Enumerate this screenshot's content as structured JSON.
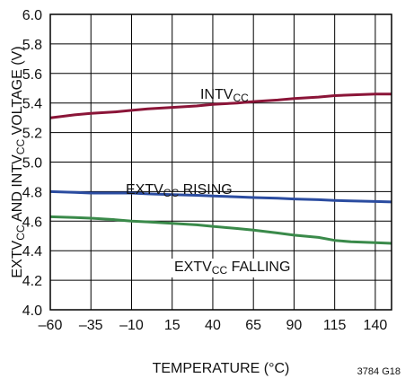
{
  "chart_data": {
    "type": "line",
    "xlabel": "TEMPERATURE (°C)",
    "ylabel": "EXTV_CC AND INTV_CC VOLTAGE (V)",
    "xlim": [
      -60,
      150
    ],
    "ylim": [
      4.0,
      6.0
    ],
    "xticks": [
      -60,
      -35,
      -10,
      15,
      40,
      65,
      90,
      115,
      140
    ],
    "xtick_labels": [
      "–60",
      "–35",
      "–10",
      "15",
      "40",
      "65",
      "90",
      "115",
      "140"
    ],
    "yticks": [
      4.0,
      4.2,
      4.4,
      4.6,
      4.8,
      5.0,
      5.2,
      5.4,
      5.6,
      5.8,
      6.0
    ],
    "ytick_labels": [
      "4.0",
      "4.2",
      "4.4",
      "4.6",
      "4.8",
      "5.0",
      "5.2",
      "5.4",
      "5.6",
      "5.8",
      "6.0"
    ],
    "grid": true,
    "figure_id": "3784 G18",
    "series": [
      {
        "name": "INTV_CC",
        "color": "#8b1538",
        "x": [
          -60,
          -45,
          -35,
          -20,
          -10,
          0,
          15,
          30,
          40,
          55,
          65,
          80,
          90,
          105,
          115,
          125,
          140,
          150
        ],
        "y": [
          5.3,
          5.32,
          5.33,
          5.34,
          5.35,
          5.36,
          5.37,
          5.38,
          5.39,
          5.4,
          5.41,
          5.42,
          5.43,
          5.44,
          5.45,
          5.455,
          5.46,
          5.46
        ]
      },
      {
        "name": "EXTV_CC RISING",
        "color": "#2b4ca0",
        "x": [
          -60,
          -45,
          -35,
          -20,
          -10,
          0,
          15,
          30,
          40,
          55,
          65,
          80,
          90,
          105,
          115,
          125,
          140,
          150
        ],
        "y": [
          4.8,
          4.795,
          4.79,
          4.79,
          4.79,
          4.785,
          4.78,
          4.775,
          4.77,
          4.765,
          4.76,
          4.755,
          4.75,
          4.745,
          4.74,
          4.737,
          4.733,
          4.73
        ]
      },
      {
        "name": "EXTV_CC FALLING",
        "color": "#3a8a4a",
        "x": [
          -60,
          -45,
          -35,
          -20,
          -10,
          0,
          15,
          30,
          40,
          55,
          65,
          80,
          90,
          105,
          115,
          125,
          140,
          150
        ],
        "y": [
          4.63,
          4.625,
          4.62,
          4.61,
          4.6,
          4.595,
          4.585,
          4.575,
          4.565,
          4.55,
          4.54,
          4.52,
          4.505,
          4.49,
          4.47,
          4.46,
          4.455,
          4.45
        ]
      }
    ],
    "annotations": [
      {
        "series": "INTV_CC",
        "base": "INTV",
        "subscript": "CC",
        "suffix": ""
      },
      {
        "series": "EXTV_CC RISING",
        "base": "EXTV",
        "subscript": "CC",
        "suffix": " RISING"
      },
      {
        "series": "EXTV_CC FALLING",
        "base": "EXTV",
        "subscript": "CC",
        "suffix": " FALLING"
      }
    ],
    "ylabel_parts": [
      {
        "text": "EXTV",
        "sub": false
      },
      {
        "text": "CC",
        "sub": true
      },
      {
        "text": " AND INTV",
        "sub": false
      },
      {
        "text": "CC",
        "sub": true
      },
      {
        "text": " VOLTAGE (V)",
        "sub": false
      }
    ]
  }
}
